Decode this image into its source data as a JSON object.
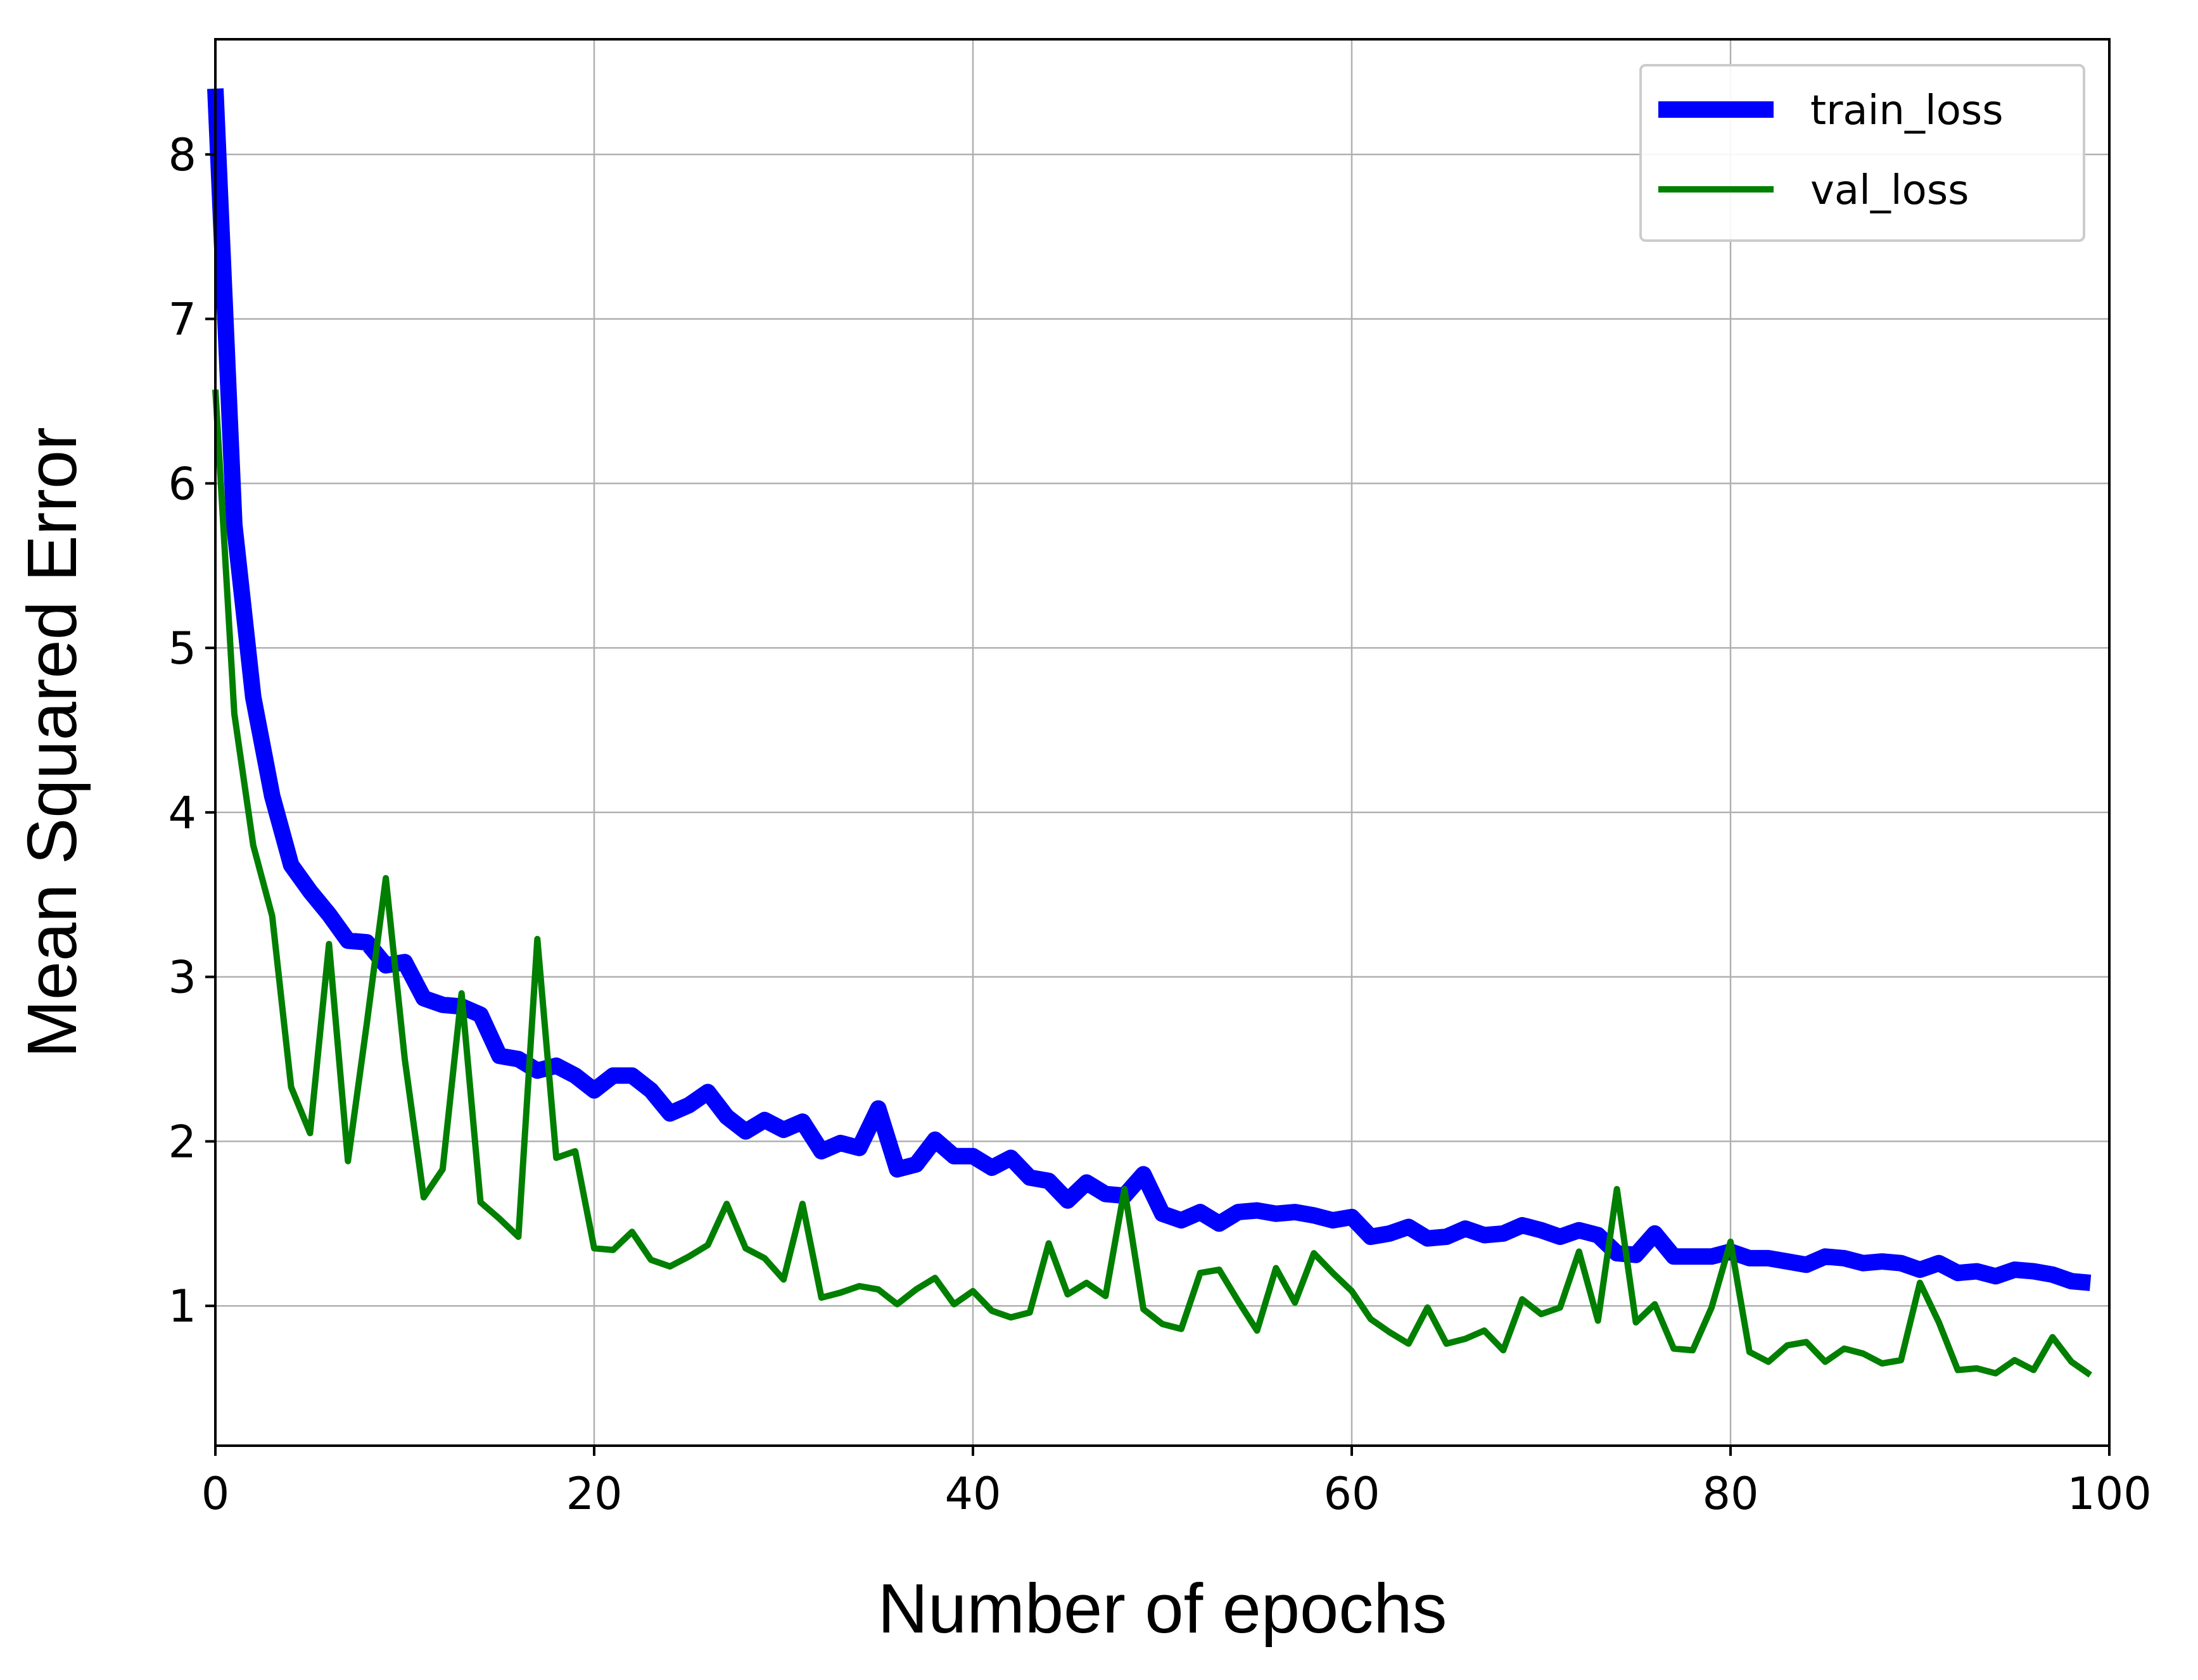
{
  "chart_data": {
    "type": "line",
    "title": "",
    "xlabel": "Number of epochs",
    "ylabel": "Mean Squared Error",
    "xlim": [
      0,
      100
    ],
    "ylim": [
      0.15,
      8.7
    ],
    "xticks": [
      0,
      20,
      40,
      60,
      80,
      100
    ],
    "yticks": [
      1,
      2,
      3,
      4,
      5,
      6,
      7,
      8
    ],
    "grid": true,
    "legend_position": "upper right",
    "x": [
      0,
      1,
      2,
      3,
      4,
      5,
      6,
      7,
      8,
      9,
      10,
      11,
      12,
      13,
      14,
      15,
      16,
      17,
      18,
      19,
      20,
      21,
      22,
      23,
      24,
      25,
      26,
      27,
      28,
      29,
      30,
      31,
      32,
      33,
      34,
      35,
      36,
      37,
      38,
      39,
      40,
      41,
      42,
      43,
      44,
      45,
      46,
      47,
      48,
      49,
      50,
      51,
      52,
      53,
      54,
      55,
      56,
      57,
      58,
      59,
      60,
      61,
      62,
      63,
      64,
      65,
      66,
      67,
      68,
      69,
      70,
      71,
      72,
      73,
      74,
      75,
      76,
      77,
      78,
      79,
      80,
      81,
      82,
      83,
      84,
      85,
      86,
      87,
      88,
      89,
      90,
      91,
      92,
      93,
      94,
      95,
      96,
      97,
      98,
      99
    ],
    "series": [
      {
        "name": "train_loss",
        "color": "#0000ff",
        "line_width": "thick",
        "values": [
          8.4,
          5.75,
          4.7,
          4.1,
          3.68,
          3.52,
          3.38,
          3.22,
          3.21,
          3.07,
          3.09,
          2.87,
          2.83,
          2.82,
          2.77,
          2.52,
          2.5,
          2.43,
          2.46,
          2.4,
          2.31,
          2.4,
          2.4,
          2.31,
          2.17,
          2.22,
          2.3,
          2.15,
          2.06,
          2.13,
          2.07,
          2.12,
          1.94,
          1.99,
          1.96,
          2.2,
          1.83,
          1.86,
          2.01,
          1.91,
          1.91,
          1.84,
          1.9,
          1.78,
          1.76,
          1.64,
          1.75,
          1.68,
          1.67,
          1.8,
          1.56,
          1.52,
          1.57,
          1.5,
          1.57,
          1.58,
          1.56,
          1.57,
          1.55,
          1.52,
          1.54,
          1.42,
          1.44,
          1.48,
          1.41,
          1.42,
          1.47,
          1.43,
          1.44,
          1.49,
          1.46,
          1.42,
          1.46,
          1.43,
          1.32,
          1.31,
          1.44,
          1.3,
          1.3,
          1.3,
          1.33,
          1.29,
          1.29,
          1.27,
          1.25,
          1.3,
          1.29,
          1.26,
          1.27,
          1.26,
          1.22,
          1.26,
          1.2,
          1.21,
          1.18,
          1.22,
          1.21,
          1.19,
          1.15,
          1.14
        ]
      },
      {
        "name": "val_loss",
        "color": "#007f00",
        "line_width": "thin",
        "values": [
          6.57,
          4.6,
          3.8,
          3.37,
          2.33,
          2.05,
          3.2,
          1.88,
          2.72,
          3.6,
          2.5,
          1.66,
          1.83,
          2.9,
          1.63,
          1.53,
          1.42,
          3.23,
          1.9,
          1.94,
          1.35,
          1.34,
          1.45,
          1.28,
          1.24,
          1.3,
          1.37,
          1.62,
          1.35,
          1.29,
          1.16,
          1.62,
          1.05,
          1.08,
          1.12,
          1.1,
          1.01,
          1.1,
          1.17,
          1.01,
          1.09,
          0.97,
          0.93,
          0.96,
          1.38,
          1.07,
          1.14,
          1.06,
          1.71,
          0.98,
          0.89,
          0.86,
          1.2,
          1.22,
          1.03,
          0.85,
          1.23,
          1.02,
          1.32,
          1.2,
          1.09,
          0.92,
          0.84,
          0.77,
          0.99,
          0.77,
          0.8,
          0.85,
          0.73,
          1.04,
          0.95,
          0.99,
          1.33,
          0.91,
          1.71,
          0.9,
          1.01,
          0.74,
          0.73,
          0.99,
          1.39,
          0.72,
          0.66,
          0.76,
          0.78,
          0.66,
          0.74,
          0.71,
          0.65,
          0.67,
          1.14,
          0.9,
          0.61,
          0.62,
          0.59,
          0.67,
          0.61,
          0.81,
          0.66,
          0.58
        ]
      }
    ]
  }
}
